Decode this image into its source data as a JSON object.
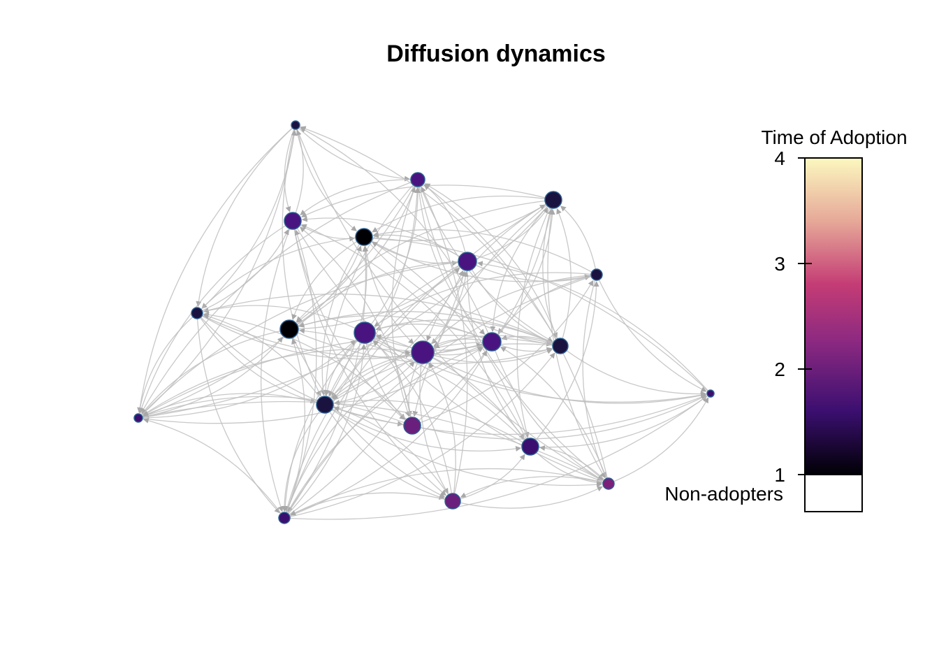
{
  "title": "Diffusion dynamics",
  "legend": {
    "title": "Time of Adoption",
    "ticks": [
      4,
      3,
      2,
      1
    ],
    "range": [
      1,
      4
    ],
    "non_adopters_label": "Non-adopters",
    "colors": [
      "#000004",
      "#3b0f70",
      "#8c2981",
      "#de4968",
      "#fe9f6d",
      "#fcfdbf"
    ],
    "non_adopter_color": "#ffffff"
  },
  "colors": {
    "edge": "#bebebe",
    "node_border": "#2a5d8f"
  }
}
